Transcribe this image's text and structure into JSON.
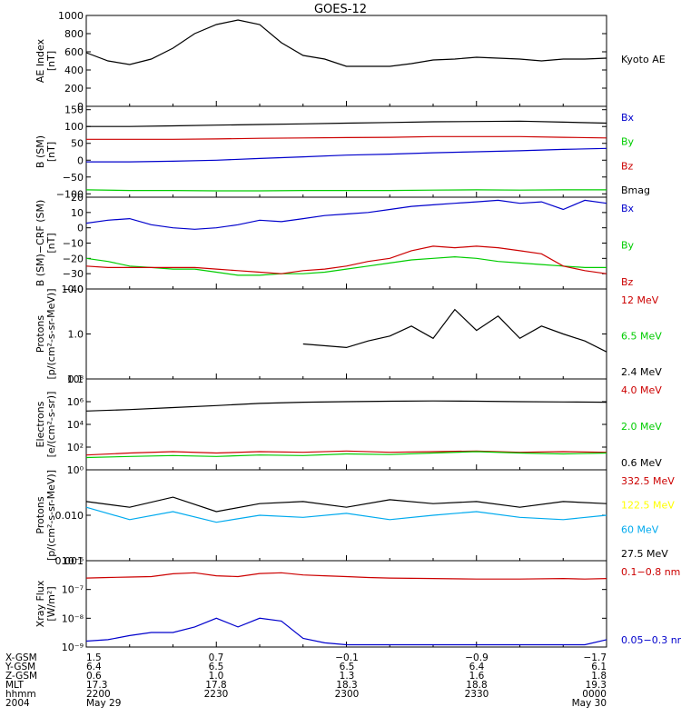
{
  "title": "GOES-12",
  "chart_data": [
    {
      "type": "line",
      "panel": "ae",
      "ylabel_lines": [
        "AE Index",
        "[nT]"
      ],
      "ylim": [
        0,
        1000
      ],
      "yscale": "linear",
      "yticks": [
        0,
        200,
        400,
        600,
        800,
        1000
      ],
      "ytick_labels": [
        "0",
        "200",
        "400",
        "600",
        "800",
        "1000"
      ],
      "x": [
        0,
        5,
        10,
        15,
        20,
        25,
        30,
        35,
        40,
        45,
        50,
        55,
        60,
        70,
        75,
        80,
        85,
        90,
        100,
        105,
        110,
        115,
        120
      ],
      "series": [
        {
          "name": "Kyoto AE",
          "color": "#000000",
          "values": [
            590,
            500,
            460,
            520,
            640,
            800,
            900,
            950,
            900,
            700,
            560,
            520,
            440,
            440,
            470,
            510,
            520,
            540,
            520,
            500,
            520,
            520,
            530
          ]
        }
      ]
    },
    {
      "type": "line",
      "panel": "bsm",
      "ylabel_lines": [
        "B (SM)",
        "[nT]"
      ],
      "ylim": [
        -110,
        160
      ],
      "yscale": "linear",
      "yticks": [
        -100,
        -50,
        0,
        50,
        100,
        150
      ],
      "ytick_labels": [
        "−100",
        "−50",
        "0",
        "50",
        "100",
        "150"
      ],
      "x": [
        0,
        10,
        20,
        30,
        40,
        50,
        60,
        70,
        80,
        90,
        100,
        110,
        120
      ],
      "series": [
        {
          "name": "Bx",
          "color": "#0000cc",
          "values": [
            -5,
            -5,
            -3,
            0,
            5,
            10,
            15,
            18,
            22,
            25,
            28,
            32,
            35
          ]
        },
        {
          "name": "By",
          "color": "#00cc00",
          "values": [
            -88,
            -90,
            -90,
            -91,
            -91,
            -90,
            -90,
            -90,
            -89,
            -88,
            -89,
            -88,
            -88
          ]
        },
        {
          "name": "Bz",
          "color": "#cc0000",
          "values": [
            62,
            62,
            62,
            63,
            65,
            66,
            67,
            68,
            70,
            70,
            70,
            68,
            66
          ]
        },
        {
          "name": "Bmag",
          "color": "#000000",
          "values": [
            100,
            100,
            102,
            104,
            106,
            108,
            110,
            112,
            114,
            115,
            116,
            113,
            110
          ]
        }
      ]
    },
    {
      "type": "line",
      "panel": "bcrf",
      "ylabel_lines": [
        "B (SM)−CRF (SM)",
        "[nT]"
      ],
      "ylim": [
        -40,
        20
      ],
      "yscale": "linear",
      "yticks": [
        -40,
        -30,
        -20,
        -10,
        0,
        10,
        20
      ],
      "ytick_labels": [
        "−40",
        "−30",
        "−20",
        "−10",
        "0",
        "10",
        "20"
      ],
      "x": [
        0,
        5,
        10,
        15,
        20,
        25,
        30,
        35,
        40,
        45,
        50,
        55,
        60,
        65,
        70,
        75,
        80,
        85,
        90,
        95,
        100,
        105,
        110,
        115,
        120
      ],
      "series": [
        {
          "name": "Bx",
          "color": "#0000cc",
          "values": [
            3,
            5,
            6,
            2,
            0,
            -1,
            0,
            2,
            5,
            4,
            6,
            8,
            9,
            10,
            12,
            14,
            15,
            16,
            17,
            18,
            16,
            17,
            12,
            18,
            16
          ]
        },
        {
          "name": "By",
          "color": "#00cc00",
          "values": [
            -20,
            -22,
            -25,
            -26,
            -27,
            -27,
            -29,
            -31,
            -31,
            -30,
            -30,
            -29,
            -27,
            -25,
            -23,
            -21,
            -20,
            -19,
            -20,
            -22,
            -23,
            -24,
            -25,
            -26,
            -26
          ]
        },
        {
          "name": "Bz",
          "color": "#cc0000",
          "values": [
            -25,
            -26,
            -26,
            -26,
            -26,
            -26,
            -27,
            -28,
            -29,
            -30,
            -28,
            -27,
            -25,
            -22,
            -20,
            -15,
            -12,
            -13,
            -12,
            -13,
            -15,
            -17,
            -25,
            -28,
            -30
          ]
        }
      ]
    },
    {
      "type": "line",
      "panel": "protons_low",
      "ylabel_lines": [
        "Protons",
        "[p/(cm²-s-sr-MeV)]"
      ],
      "ylim": [
        0.1,
        10
      ],
      "yscale": "log",
      "yticks": [
        0.1,
        1,
        10
      ],
      "ytick_labels": [
        "0.1",
        "1.0",
        "10.0"
      ],
      "x": [
        0,
        10,
        20,
        30,
        40,
        50,
        60,
        65,
        70,
        75,
        80,
        85,
        90,
        95,
        100,
        105,
        110,
        115,
        120
      ],
      "series": [
        {
          "name": "12 MeV",
          "color": "#cc0000",
          "values": [
            null,
            null,
            null,
            null,
            null,
            null,
            null,
            null,
            null,
            null,
            null,
            null,
            null,
            null,
            null,
            null,
            null,
            null,
            null
          ]
        },
        {
          "name": "6.5 MeV",
          "color": "#00cc00",
          "values": [
            null,
            null,
            null,
            null,
            null,
            null,
            null,
            null,
            null,
            null,
            null,
            null,
            null,
            null,
            null,
            null,
            null,
            null,
            null
          ]
        },
        {
          "name": "2.4 MeV",
          "color": "#000000",
          "values": [
            0.4,
            null,
            null,
            0.4,
            null,
            0.6,
            0.5,
            0.7,
            0.9,
            1.5,
            0.8,
            3.5,
            1.2,
            2.5,
            0.8,
            1.5,
            1.0,
            0.7,
            0.4
          ]
        }
      ]
    },
    {
      "type": "line",
      "panel": "electrons",
      "ylabel_lines": [
        "Electrons",
        "[e/(cm²-s-sr)]"
      ],
      "ylim": [
        1,
        100000000.0
      ],
      "yscale": "log",
      "yticks": [
        1,
        100,
        10000,
        1000000,
        100000000
      ],
      "ytick_labels": [
        "10⁰",
        "10²",
        "10⁴",
        "10⁶",
        "10⁸"
      ],
      "x": [
        0,
        10,
        20,
        30,
        40,
        50,
        60,
        70,
        80,
        90,
        100,
        110,
        120
      ],
      "series": [
        {
          "name": "4.0 MeV",
          "color": "#cc0000",
          "values": [
            20,
            30,
            40,
            30,
            40,
            35,
            45,
            35,
            40,
            45,
            35,
            40,
            35
          ]
        },
        {
          "name": "2.0 MeV",
          "color": "#00cc00",
          "values": [
            12,
            15,
            18,
            15,
            20,
            18,
            25,
            22,
            30,
            40,
            30,
            25,
            30
          ]
        },
        {
          "name": "0.6 MeV",
          "color": "#000000",
          "values": [
            150000,
            200000,
            300000,
            450000,
            700000,
            900000,
            1000000,
            1100000,
            1150000,
            1100000,
            1000000,
            950000,
            900000
          ]
        }
      ]
    },
    {
      "type": "line",
      "panel": "protons_high",
      "ylabel_lines": [
        "Protons",
        "[p/(cm²-s-sr-MeV)]"
      ],
      "ylim": [
        0.001,
        0.1
      ],
      "yscale": "log",
      "yticks": [
        0.001,
        0.01,
        0.1
      ],
      "ytick_labels": [
        "0.001",
        "0.010",
        ""
      ],
      "x": [
        0,
        10,
        20,
        30,
        40,
        50,
        60,
        70,
        80,
        90,
        100,
        110,
        120
      ],
      "series": [
        {
          "name": "332.5 MeV",
          "color": "#cc0000",
          "values": [
            null,
            null,
            null,
            null,
            null,
            null,
            null,
            null,
            null,
            null,
            null,
            null,
            null
          ]
        },
        {
          "name": "122.5 MeV",
          "color": "#ffff00",
          "values": [
            null,
            null,
            null,
            null,
            null,
            null,
            null,
            null,
            null,
            null,
            null,
            null,
            null
          ]
        },
        {
          "name": "60 MeV",
          "color": "#00aaee",
          "values": [
            0.015,
            0.008,
            0.012,
            0.007,
            0.01,
            0.009,
            0.011,
            0.008,
            0.01,
            0.012,
            0.009,
            0.008,
            0.01
          ]
        },
        {
          "name": "27.5 MeV",
          "color": "#000000",
          "values": [
            0.02,
            0.015,
            0.025,
            0.012,
            0.018,
            0.02,
            0.015,
            0.022,
            0.018,
            0.02,
            0.015,
            0.02,
            0.018
          ]
        }
      ]
    },
    {
      "type": "line",
      "panel": "xray",
      "ylabel_lines": [
        "Xray Flux",
        "[W/m²]"
      ],
      "ylim": [
        1e-09,
        1e-06
      ],
      "yscale": "log",
      "yticks": [
        1e-09,
        1e-08,
        1e-07,
        1e-06
      ],
      "ytick_labels": [
        "10⁻⁹",
        "10⁻⁸",
        "10⁻⁷",
        "10⁻⁶"
      ],
      "x": [
        0,
        5,
        10,
        15,
        20,
        25,
        30,
        35,
        40,
        45,
        50,
        55,
        60,
        65,
        70,
        80,
        90,
        100,
        110,
        115,
        120
      ],
      "series": [
        {
          "name": "0.1−0.8 nm",
          "color": "#cc0000",
          "values": [
            2.5e-07,
            2.6e-07,
            2.7e-07,
            2.8e-07,
            3.5e-07,
            3.8e-07,
            3e-07,
            2.8e-07,
            3.6e-07,
            3.8e-07,
            3.2e-07,
            3e-07,
            2.8e-07,
            2.6e-07,
            2.5e-07,
            2.4e-07,
            2.3e-07,
            2.3e-07,
            2.4e-07,
            2.3e-07,
            2.4e-07
          ]
        },
        {
          "name": "0.05−0.3 nm",
          "color": "#0000cc",
          "values": [
            1.6e-09,
            1.8e-09,
            2.5e-09,
            3.2e-09,
            3.2e-09,
            5e-09,
            1e-08,
            5e-09,
            1e-08,
            8e-09,
            2e-09,
            1.4e-09,
            1.2e-09,
            1.2e-09,
            1.2e-09,
            1.2e-09,
            1.2e-09,
            1.2e-09,
            1.2e-09,
            1.2e-09,
            1.8e-09
          ]
        }
      ]
    }
  ],
  "x_axis": {
    "rows": [
      {
        "label": "X-GSM",
        "values": [
          "1.5",
          "0.7",
          "−0.1",
          "−0.9",
          "−1.7"
        ]
      },
      {
        "label": "Y-GSM",
        "values": [
          "6.4",
          "6.5",
          "6.5",
          "6.4",
          "6.1"
        ]
      },
      {
        "label": "Z-GSM",
        "values": [
          "0.6",
          "1.0",
          "1.3",
          "1.6",
          "1.8"
        ]
      },
      {
        "label": "MLT",
        "values": [
          "17.3",
          "17.8",
          "18.3",
          "18.8",
          "19.3"
        ]
      },
      {
        "label": "hhmm",
        "values": [
          "2200",
          "2230",
          "2300",
          "2330",
          "0000"
        ]
      },
      {
        "label": "2004",
        "values": [
          "May 29",
          "",
          "",
          "",
          "May 30"
        ]
      }
    ]
  }
}
